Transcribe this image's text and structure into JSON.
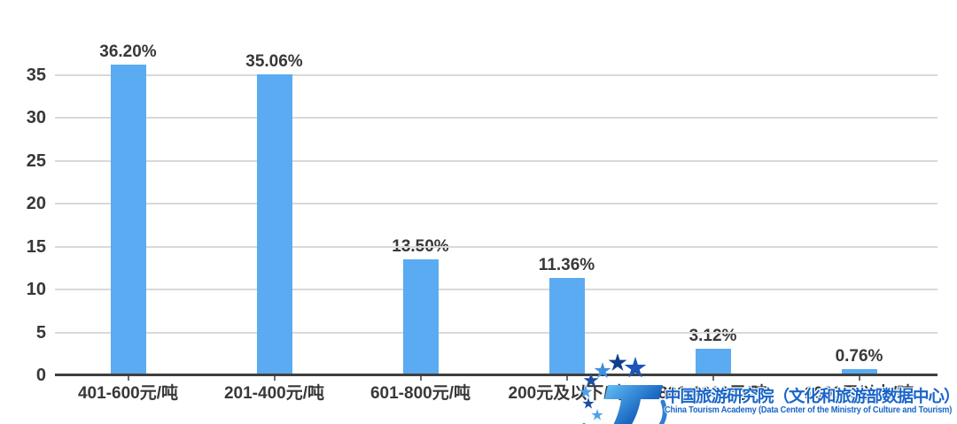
{
  "chart_data": {
    "type": "bar",
    "title": "",
    "xlabel": "",
    "ylabel": "",
    "categories": [
      "401-600元/吨",
      "201-400元/吨",
      "601-800元/吨",
      "200元及以下/吨",
      "801-1000元/吨",
      "1000元以上/吨"
    ],
    "values": [
      36.2,
      35.06,
      13.5,
      11.36,
      3.12,
      0.76
    ],
    "value_labels": [
      "36.20%",
      "35.06%",
      "13.50%",
      "11.36%",
      "3.12%",
      "0.76%"
    ],
    "yticks": [
      0,
      5,
      10,
      15,
      20,
      25,
      30,
      35
    ],
    "ylim": [
      0,
      35
    ],
    "grid": true,
    "legend_position": "none",
    "bar_color": "#5AABF2",
    "note": "labels of last two categories partially covered by watermark"
  },
  "watermark": {
    "logo": "china-tourism-academy-logo",
    "org_cn": "中国旅游研究院（文化和旅游部数据中心）",
    "org_en": "China Tourism Academy (Data Center of the Ministry of Culture and Tourism)"
  },
  "colors": {
    "bar": "#5AABF2",
    "grid_line": "#D9D9D9",
    "axis_line": "#3F3F3F",
    "tick_mark": "#6E6E6E",
    "text": "#383838",
    "watermark_blue": "#1965C8",
    "logo_dark_blue": "#123F8C",
    "logo_light_blue": "#4FA0E8",
    "background": "#FFFFFF"
  }
}
